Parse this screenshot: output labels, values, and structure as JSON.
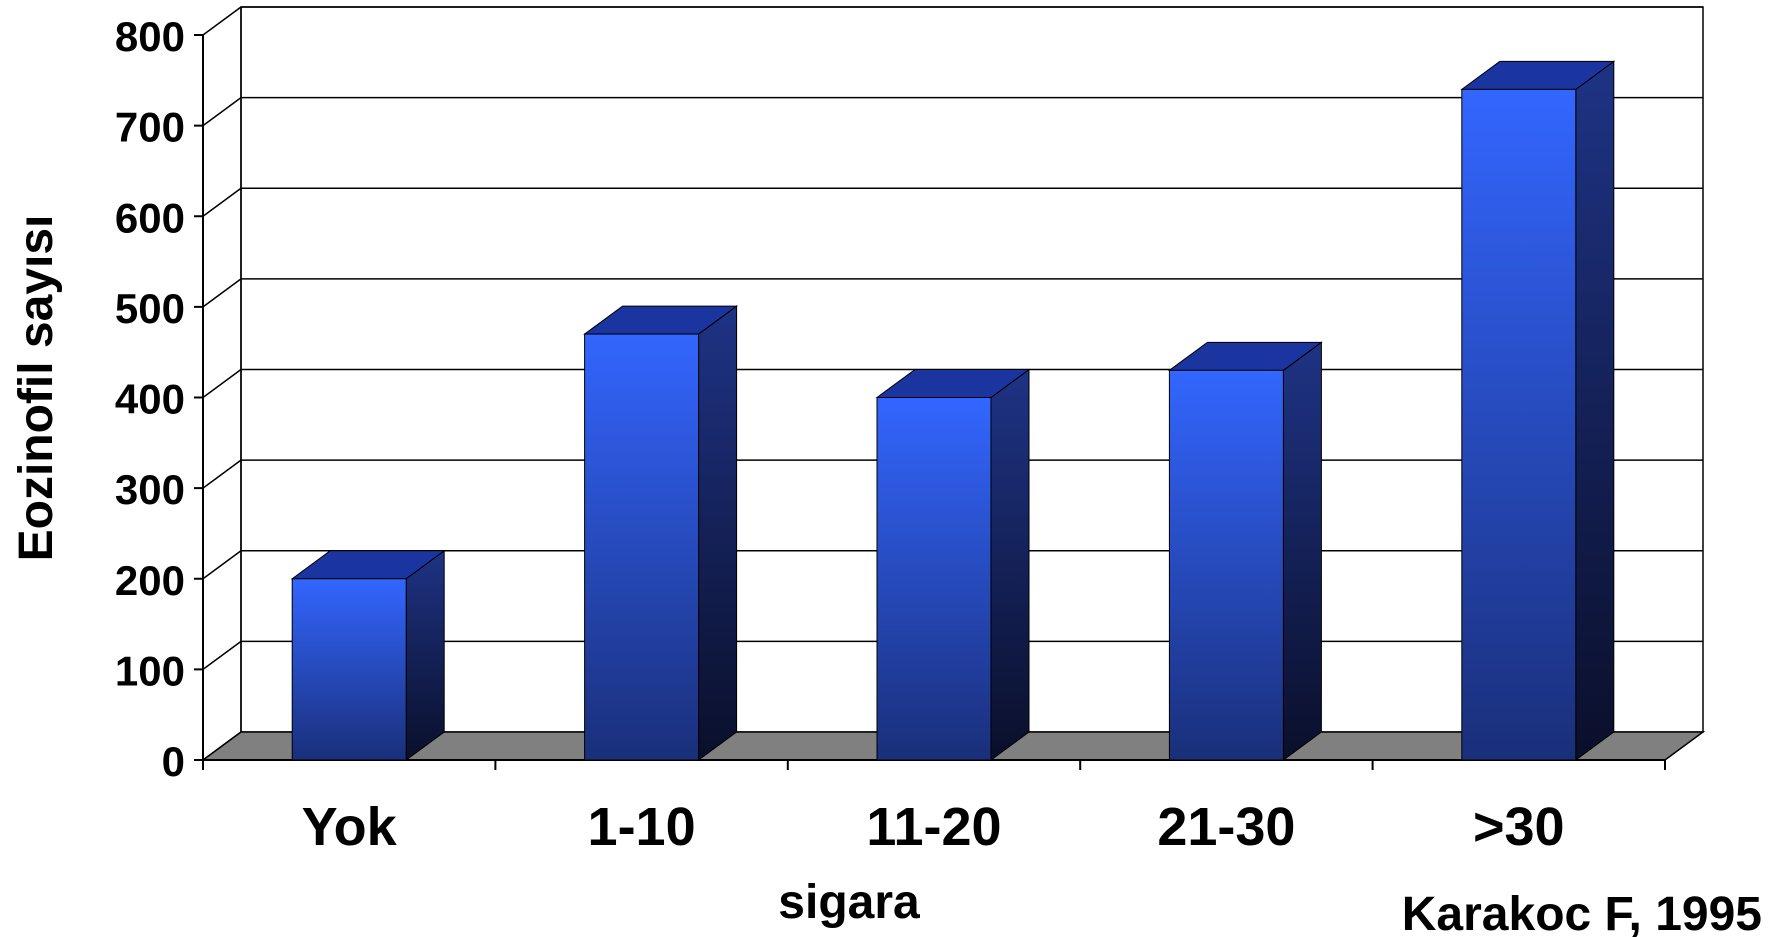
{
  "chart_data": {
    "type": "bar",
    "title": "",
    "xlabel": "sigara",
    "ylabel": "Eozinofil sayısı",
    "categories": [
      "Yok",
      "1-10",
      "11-20",
      "21-30",
      ">30"
    ],
    "values": [
      200,
      470,
      400,
      430,
      740
    ],
    "ylim": [
      0,
      800
    ],
    "yticks": [
      "0",
      "100",
      "200",
      "300",
      "400",
      "500",
      "600",
      "700",
      "800"
    ],
    "grid": true,
    "legend": "none",
    "annotation": "Karakoc F, 1995"
  },
  "colors": {
    "bar_front_top": "#3366ff",
    "bar_front_bottom": "#1a2f7a",
    "bar_side_top": "#1e3385",
    "bar_side_bottom": "#0a0f2a",
    "bar_top_face": "#1a35a0",
    "floor": "#808080",
    "grid": "#000000"
  }
}
